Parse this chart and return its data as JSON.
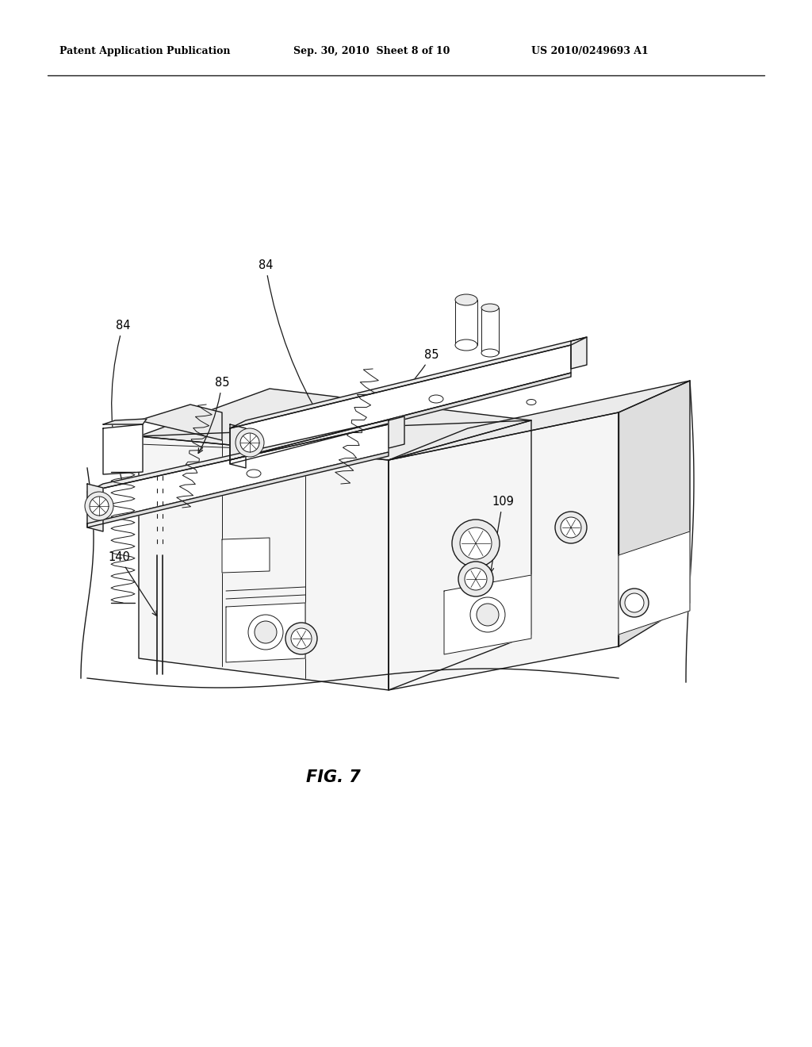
{
  "background_color": "#ffffff",
  "header_left": "Patent Application Publication",
  "header_center": "Sep. 30, 2010  Sheet 8 of 10",
  "header_right": "US 2010/0249693 A1",
  "fig_label": "FIG. 7",
  "line_color": "#1a1a1a",
  "light_fill": "#f5f5f5",
  "mid_fill": "#ebebeb",
  "dark_fill": "#dedede"
}
